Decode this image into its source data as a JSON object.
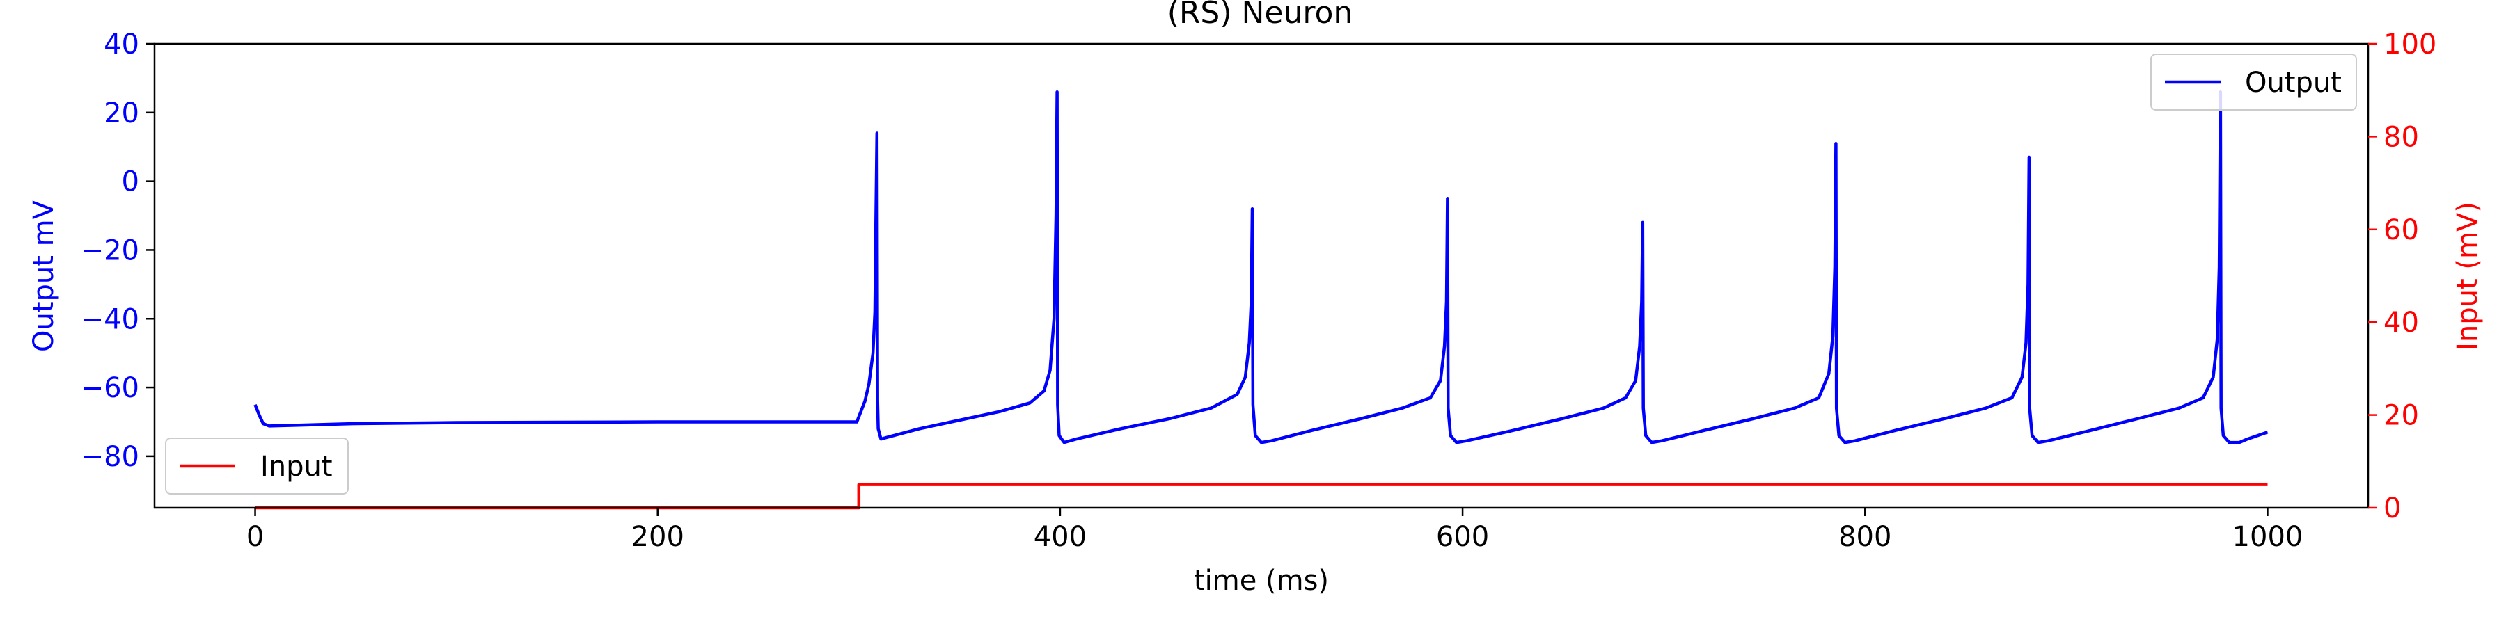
{
  "chart_data": {
    "type": "line",
    "title": "(RS) Neuron",
    "xlabel": "time (ms)",
    "ylabel_left": "Output mV",
    "ylabel_right": "Input (mV)",
    "xlim": [
      -50,
      1050
    ],
    "ylim_left": [
      -95,
      40
    ],
    "ylim_right": [
      0,
      100
    ],
    "x_ticks": [
      0,
      200,
      400,
      600,
      800,
      1000
    ],
    "y_ticks_left": [
      -80,
      -60,
      -40,
      -20,
      0,
      20,
      40
    ],
    "y_ticks_right": [
      0,
      20,
      40,
      60,
      80,
      100
    ],
    "grid": false,
    "colors": {
      "output": "#0000ff",
      "input": "#ff0000",
      "axis": "#000000"
    },
    "legend_output": {
      "placement": "upper-right",
      "label": "Output"
    },
    "legend_input": {
      "placement": "lower-left",
      "label": "Input"
    },
    "series": [
      {
        "name": "Output",
        "axis": "left",
        "color": "#0000ff",
        "points": [
          [
            0,
            -65
          ],
          [
            2,
            -68
          ],
          [
            4,
            -70.5
          ],
          [
            7,
            -71.2
          ],
          [
            20,
            -71
          ],
          [
            50,
            -70.5
          ],
          [
            100,
            -70.2
          ],
          [
            150,
            -70.1
          ],
          [
            200,
            -70
          ],
          [
            250,
            -70
          ],
          [
            299,
            -70
          ],
          [
            301,
            -67
          ],
          [
            303,
            -64
          ],
          [
            305,
            -59
          ],
          [
            307,
            -50
          ],
          [
            308,
            -38
          ],
          [
            308.5,
            -10
          ],
          [
            309,
            14
          ],
          [
            309.3,
            -64
          ],
          [
            309.6,
            -72
          ],
          [
            311,
            -75
          ],
          [
            314,
            -74.5
          ],
          [
            330,
            -72
          ],
          [
            350,
            -69.5
          ],
          [
            370,
            -67
          ],
          [
            385,
            -64.5
          ],
          [
            392,
            -61
          ],
          [
            395,
            -55
          ],
          [
            397,
            -40
          ],
          [
            398,
            -10
          ],
          [
            398.5,
            26
          ],
          [
            398.8,
            -65
          ],
          [
            399.5,
            -74
          ],
          [
            402,
            -76
          ],
          [
            408,
            -75
          ],
          [
            430,
            -72
          ],
          [
            455,
            -69
          ],
          [
            475,
            -66
          ],
          [
            488,
            -62
          ],
          [
            492,
            -57
          ],
          [
            494,
            -47
          ],
          [
            495,
            -35
          ],
          [
            495.5,
            -8
          ],
          [
            495.8,
            -65
          ],
          [
            497,
            -74
          ],
          [
            500,
            -76
          ],
          [
            505,
            -75.5
          ],
          [
            525,
            -72.5
          ],
          [
            550,
            -69
          ],
          [
            570,
            -66
          ],
          [
            584,
            -63
          ],
          [
            589,
            -58
          ],
          [
            591,
            -48
          ],
          [
            592,
            -35
          ],
          [
            592.5,
            -5
          ],
          [
            592.8,
            -66
          ],
          [
            594,
            -74
          ],
          [
            597,
            -76
          ],
          [
            602,
            -75.5
          ],
          [
            625,
            -72.5
          ],
          [
            650,
            -69
          ],
          [
            670,
            -66
          ],
          [
            681,
            -63
          ],
          [
            686,
            -58
          ],
          [
            688,
            -48
          ],
          [
            689,
            -35
          ],
          [
            689.5,
            -12
          ],
          [
            689.8,
            -66
          ],
          [
            691,
            -74
          ],
          [
            694,
            -76
          ],
          [
            699,
            -75.5
          ],
          [
            720,
            -72.5
          ],
          [
            745,
            -69
          ],
          [
            765,
            -66
          ],
          [
            777,
            -63
          ],
          [
            782,
            -56
          ],
          [
            784,
            -45
          ],
          [
            785,
            -25
          ],
          [
            785.5,
            11
          ],
          [
            785.8,
            -66
          ],
          [
            787,
            -74
          ],
          [
            790,
            -76
          ],
          [
            795,
            -75.5
          ],
          [
            815,
            -72.5
          ],
          [
            840,
            -69
          ],
          [
            860,
            -66
          ],
          [
            873,
            -63
          ],
          [
            878,
            -57
          ],
          [
            880,
            -47
          ],
          [
            881,
            -30
          ],
          [
            881.5,
            7
          ],
          [
            881.8,
            -66
          ],
          [
            883,
            -74
          ],
          [
            886,
            -76
          ],
          [
            891,
            -75.5
          ],
          [
            912,
            -72.5
          ],
          [
            936,
            -69
          ],
          [
            956,
            -66
          ],
          [
            968,
            -63
          ],
          [
            973,
            -57
          ],
          [
            975,
            -46
          ],
          [
            976,
            -25
          ],
          [
            976.6,
            26
          ],
          [
            976.9,
            -66
          ],
          [
            978,
            -74
          ],
          [
            981,
            -76
          ],
          [
            986,
            -76
          ],
          [
            990,
            -75
          ],
          [
            995,
            -74
          ],
          [
            1000,
            -73
          ]
        ]
      },
      {
        "name": "Input",
        "axis": "right",
        "color": "#ff0000",
        "points": [
          [
            0,
            0
          ],
          [
            300,
            0
          ],
          [
            300,
            5
          ],
          [
            1000,
            5
          ]
        ]
      }
    ]
  }
}
